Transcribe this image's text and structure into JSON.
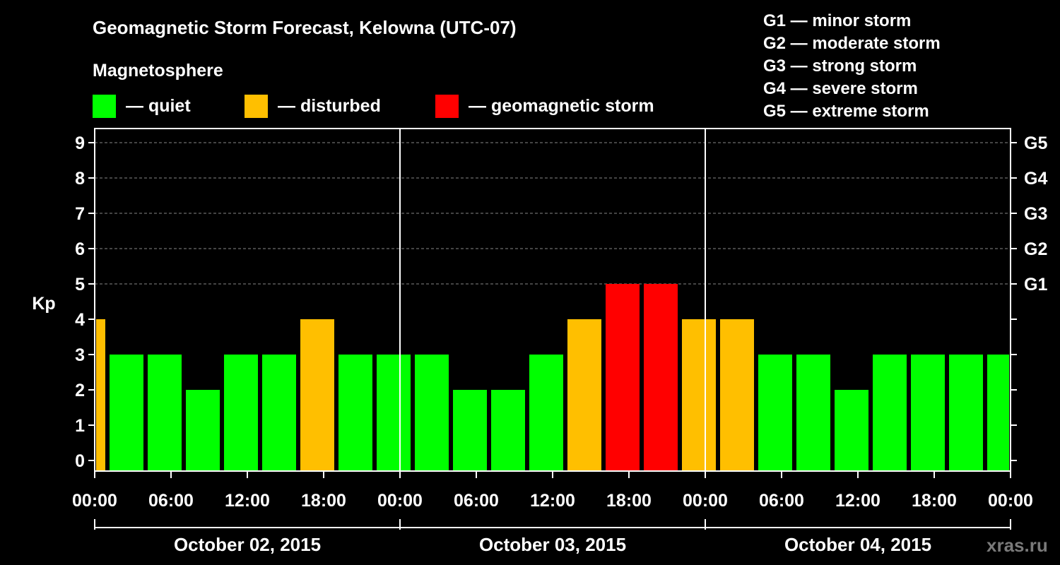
{
  "title": "Geomagnetic Storm Forecast, Kelowna (UTC-07)",
  "subtitle": "Magnetosphere",
  "legend": [
    {
      "label": "— quiet",
      "color": "#00ff00"
    },
    {
      "label": "— disturbed",
      "color": "#ffbf00"
    },
    {
      "label": "— geomagnetic storm",
      "color": "#ff0000"
    }
  ],
  "storm_levels": [
    "G1 — minor storm",
    "G2 — moderate storm",
    "G3 — strong storm",
    "G4 — severe storm",
    "G5 — extreme storm"
  ],
  "watermark": "xras.ru",
  "chart_data": {
    "type": "bar",
    "title": "Geomagnetic Storm Forecast, Kelowna (UTC-07)",
    "ylabel": "Kp",
    "ylim": [
      0,
      9
    ],
    "y_ticks": [
      "0",
      "1",
      "2",
      "3",
      "4",
      "5",
      "6",
      "7",
      "8",
      "9"
    ],
    "right_ticks": [
      {
        "kp": 5,
        "label": "G1"
      },
      {
        "kp": 6,
        "label": "G2"
      },
      {
        "kp": 7,
        "label": "G3"
      },
      {
        "kp": 8,
        "label": "G4"
      },
      {
        "kp": 9,
        "label": "G5"
      }
    ],
    "x_tick_labels": [
      "00:00",
      "06:00",
      "12:00",
      "18:00",
      "00:00",
      "06:00",
      "12:00",
      "18:00",
      "00:00",
      "06:00",
      "12:00",
      "18:00",
      "00:00"
    ],
    "days": [
      "October 02, 2015",
      "October 03, 2015",
      "October 04, 2015"
    ],
    "grid": true,
    "colors": {
      "quiet": "#00ff00",
      "disturbed": "#ffbf00",
      "storm": "#ff0000"
    },
    "bars": [
      {
        "start_hour": 0,
        "end_hour": 1,
        "kp": 4
      },
      {
        "start_hour": 1,
        "end_hour": 4,
        "kp": 3
      },
      {
        "start_hour": 4,
        "end_hour": 7,
        "kp": 3
      },
      {
        "start_hour": 7,
        "end_hour": 10,
        "kp": 2
      },
      {
        "start_hour": 10,
        "end_hour": 13,
        "kp": 3
      },
      {
        "start_hour": 13,
        "end_hour": 16,
        "kp": 3
      },
      {
        "start_hour": 16,
        "end_hour": 19,
        "kp": 4
      },
      {
        "start_hour": 19,
        "end_hour": 22,
        "kp": 3
      },
      {
        "start_hour": 22,
        "end_hour": 25,
        "kp": 3
      },
      {
        "start_hour": 25,
        "end_hour": 28,
        "kp": 3
      },
      {
        "start_hour": 28,
        "end_hour": 31,
        "kp": 2
      },
      {
        "start_hour": 31,
        "end_hour": 34,
        "kp": 2
      },
      {
        "start_hour": 34,
        "end_hour": 37,
        "kp": 3
      },
      {
        "start_hour": 37,
        "end_hour": 40,
        "kp": 4
      },
      {
        "start_hour": 40,
        "end_hour": 43,
        "kp": 5
      },
      {
        "start_hour": 43,
        "end_hour": 46,
        "kp": 5
      },
      {
        "start_hour": 46,
        "end_hour": 49,
        "kp": 4
      },
      {
        "start_hour": 49,
        "end_hour": 52,
        "kp": 4
      },
      {
        "start_hour": 52,
        "end_hour": 55,
        "kp": 3
      },
      {
        "start_hour": 55,
        "end_hour": 58,
        "kp": 3
      },
      {
        "start_hour": 58,
        "end_hour": 61,
        "kp": 2
      },
      {
        "start_hour": 61,
        "end_hour": 64,
        "kp": 3
      },
      {
        "start_hour": 64,
        "end_hour": 67,
        "kp": 3
      },
      {
        "start_hour": 67,
        "end_hour": 70,
        "kp": 3
      },
      {
        "start_hour": 70,
        "end_hour": 72,
        "kp": 3
      }
    ]
  }
}
